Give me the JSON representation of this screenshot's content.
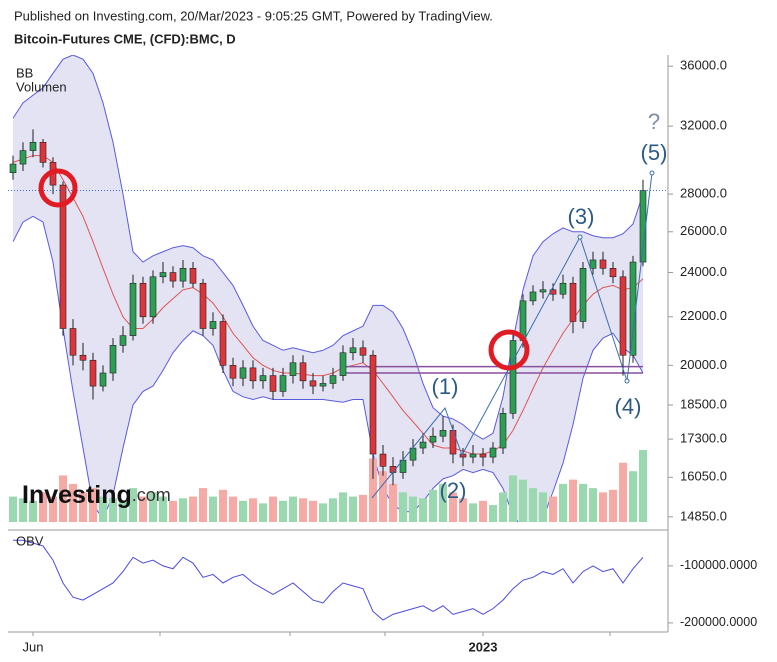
{
  "chart_data": {
    "type": "candlestick",
    "header": "Published on Investing.com, 20/Mar/2023 - 9:05:25 GMT, Powered by TradingView.",
    "title": "Bitcoin-Futures CME, (CFD):BMC, D",
    "indicator_labels": [
      "BB",
      "Volumen"
    ],
    "watermark": [
      "Investing",
      ".com"
    ],
    "categories": [
      null,
      null,
      "Jun",
      null,
      null,
      null,
      null,
      null,
      null,
      null,
      null,
      null,
      null,
      null,
      null,
      null,
      null,
      null,
      null,
      null,
      null,
      null,
      null,
      null,
      null,
      null,
      null,
      null,
      null,
      null,
      null,
      null,
      null,
      null,
      null,
      null,
      null,
      null,
      null,
      null,
      null,
      null,
      null,
      null,
      null,
      null,
      null,
      "2023",
      null,
      null,
      null,
      null,
      null,
      null,
      null,
      null,
      null,
      null,
      null,
      null,
      null,
      null,
      null,
      null
    ],
    "open": [
      29200,
      29700,
      30500,
      31000,
      29800,
      28500,
      21500,
      20400,
      20200,
      19200,
      19700,
      20800,
      21200,
      23500,
      22000,
      23800,
      24000,
      23600,
      24200,
      23500,
      21500,
      21800,
      20000,
      19500,
      19900,
      19400,
      19600,
      19000,
      19600,
      20100,
      19400,
      19200,
      19300,
      19600,
      20500,
      20700,
      20400,
      16800,
      16400,
      16200,
      16600,
      17000,
      17200,
      17400,
      17600,
      16800,
      16700,
      16800,
      16700,
      17000,
      18200,
      21000,
      22700,
      23100,
      23200,
      23000,
      23500,
      21800,
      24200,
      24600,
      24200,
      23800,
      20400,
      24500
    ],
    "high": [
      30200,
      31000,
      31800,
      31200,
      30100,
      28700,
      21900,
      20900,
      20500,
      20000,
      21100,
      21600,
      23900,
      23800,
      24100,
      24500,
      24300,
      24600,
      24500,
      23700,
      22200,
      22100,
      20300,
      20200,
      20200,
      19900,
      19900,
      19900,
      20400,
      20400,
      19700,
      19600,
      19900,
      20800,
      21100,
      21000,
      20600,
      17100,
      16700,
      16900,
      17300,
      17500,
      17700,
      18100,
      17800,
      17000,
      17100,
      17000,
      17200,
      18400,
      21300,
      23000,
      23400,
      23600,
      23500,
      23900,
      23800,
      24500,
      25000,
      25000,
      24500,
      24100,
      24800,
      28800
    ],
    "low": [
      28800,
      29300,
      30100,
      29500,
      28000,
      21200,
      20000,
      19800,
      18700,
      19000,
      19400,
      20500,
      21000,
      21700,
      21700,
      23500,
      23300,
      23300,
      23300,
      21200,
      21200,
      19700,
      19200,
      19200,
      19100,
      19100,
      18700,
      18800,
      19300,
      19100,
      18900,
      19000,
      19100,
      19400,
      20200,
      20100,
      16000,
      16100,
      15800,
      16000,
      16400,
      16800,
      17000,
      17200,
      16500,
      16400,
      16500,
      16400,
      16500,
      16800,
      18000,
      20700,
      22500,
      22800,
      22700,
      22800,
      21300,
      21500,
      23900,
      23900,
      23500,
      19600,
      20100,
      24300
    ],
    "close": [
      29700,
      30500,
      31000,
      29800,
      28500,
      21500,
      20400,
      20200,
      19200,
      19700,
      20800,
      21200,
      23500,
      22000,
      23800,
      24000,
      23600,
      24200,
      23500,
      21500,
      21800,
      20000,
      19500,
      19900,
      19400,
      19600,
      19000,
      19600,
      20100,
      19400,
      19200,
      19300,
      19600,
      20500,
      20700,
      20400,
      16800,
      16400,
      16200,
      16600,
      17000,
      17200,
      17400,
      17600,
      16800,
      16700,
      16800,
      16700,
      17000,
      18200,
      21000,
      22700,
      23100,
      23200,
      23000,
      23500,
      21800,
      24200,
      24600,
      24200,
      23800,
      20400,
      24500,
      28200
    ],
    "up_color": "#2f9e55",
    "down_color": "#d9373b",
    "bands": {
      "upper": [
        32500,
        33500,
        34000,
        34500,
        35500,
        36500,
        36800,
        36500,
        35500,
        33500,
        31000,
        28000,
        25000,
        24500,
        24800,
        25000,
        25200,
        25300,
        25200,
        24800,
        24600,
        24000,
        23400,
        22500,
        21600,
        21000,
        20800,
        20600,
        20700,
        20600,
        20500,
        20600,
        20800,
        21200,
        21400,
        21600,
        22500,
        22500,
        22200,
        21500,
        20500,
        19300,
        18400,
        18100,
        18000,
        17800,
        17500,
        17300,
        17500,
        18800,
        21000,
        23200,
        24800,
        25500,
        25900,
        26200,
        26000,
        26000,
        25800,
        25700,
        25700,
        25900,
        26400,
        28000
      ],
      "middle": [
        29800,
        30000,
        30200,
        30200,
        29800,
        28800,
        27800,
        26800,
        25500,
        24200,
        23000,
        22000,
        21500,
        21500,
        21900,
        22400,
        22800,
        23200,
        23300,
        23000,
        22600,
        22000,
        21300,
        20800,
        20300,
        20000,
        19800,
        19700,
        19700,
        19650,
        19600,
        19600,
        19700,
        19900,
        20000,
        20100,
        19800,
        19300,
        18800,
        18300,
        17900,
        17500,
        17100,
        17000,
        17000,
        16900,
        16800,
        16800,
        16900,
        17100,
        17600,
        18300,
        19100,
        19900,
        20600,
        21300,
        21900,
        22500,
        23000,
        23300,
        23400,
        23200,
        23300,
        23700
      ],
      "lower": [
        25500,
        26500,
        26800,
        26500,
        24500,
        21500,
        19000,
        17000,
        15200,
        14800,
        15500,
        17000,
        18500,
        19000,
        19200,
        19800,
        20500,
        21000,
        21400,
        21200,
        20800,
        19800,
        19000,
        18800,
        18700,
        18800,
        18700,
        18700,
        18700,
        18700,
        18700,
        18700,
        18650,
        18600,
        18700,
        18700,
        16800,
        15700,
        15200,
        15000,
        15000,
        15300,
        15700,
        16000,
        16100,
        16300,
        16200,
        16300,
        16200,
        15700,
        14900,
        14500,
        14500,
        14800,
        15600,
        16500,
        17800,
        19500,
        20600,
        21100,
        21300,
        20700,
        20400,
        19700
      ],
      "fill": "#dcdcf0",
      "edge_color": "#5a5ae0",
      "middle_color": "#e05555"
    },
    "volume": [
      30,
      28,
      25,
      35,
      30,
      55,
      45,
      35,
      40,
      30,
      28,
      25,
      40,
      30,
      35,
      30,
      25,
      28,
      30,
      40,
      30,
      38,
      30,
      25,
      28,
      22,
      30,
      25,
      30,
      28,
      25,
      22,
      28,
      35,
      30,
      32,
      75,
      60,
      45,
      35,
      30,
      28,
      38,
      45,
      35,
      28,
      22,
      25,
      20,
      35,
      55,
      50,
      40,
      35,
      30,
      45,
      50,
      45,
      40,
      35,
      38,
      70,
      60,
      85
    ],
    "volume_up_color": "#9ad9b0",
    "volume_down_color": "#f5aaa6",
    "ylim": [
      14700,
      36800
    ],
    "log_scale": true,
    "yticks": [
      {
        "value": 36000,
        "label": "36000.0"
      },
      {
        "value": 32000,
        "label": "32000.0"
      },
      {
        "value": 28000,
        "label": "28000.0"
      },
      {
        "value": 26000,
        "label": "26000.0"
      },
      {
        "value": 24000,
        "label": "24000.0"
      },
      {
        "value": 22000,
        "label": "22000.0"
      },
      {
        "value": 20000,
        "label": "20000.0"
      },
      {
        "value": 18500,
        "label": "18500.0"
      },
      {
        "value": 17300,
        "label": "17300.0"
      },
      {
        "value": 16050,
        "label": "16050.0"
      },
      {
        "value": 14850,
        "label": "14850.0"
      }
    ],
    "support_zone": [
      19700,
      19950
    ],
    "annotations": [
      "(1)",
      "(2)",
      "(3)",
      "(4)",
      "(5)",
      "?"
    ],
    "obv": {
      "label": "OBV",
      "color": "#4a4ae0",
      "values": [
        -55000,
        -55000,
        -60000,
        -65000,
        -90000,
        -130000,
        -155000,
        -160000,
        -150000,
        -140000,
        -130000,
        -110000,
        -85000,
        -95000,
        -90000,
        -100000,
        -105000,
        -85000,
        -95000,
        -120000,
        -115000,
        -130000,
        -120000,
        -115000,
        -130000,
        -140000,
        -150000,
        -140000,
        -130000,
        -145000,
        -160000,
        -165000,
        -145000,
        -130000,
        -135000,
        -140000,
        -180000,
        -195000,
        -185000,
        -180000,
        -175000,
        -170000,
        -180000,
        -170000,
        -185000,
        -180000,
        -175000,
        -185000,
        -175000,
        -160000,
        -140000,
        -125000,
        -120000,
        -110000,
        -115000,
        -105000,
        -130000,
        -110000,
        -100000,
        -110000,
        -105000,
        -130000,
        -105000,
        -85000
      ],
      "ylim": [
        -216000,
        -37000
      ],
      "yticks": [
        {
          "value": -100000,
          "label": "-100000.0000"
        },
        {
          "value": -200000,
          "label": "-200000.0000"
        }
      ]
    }
  }
}
